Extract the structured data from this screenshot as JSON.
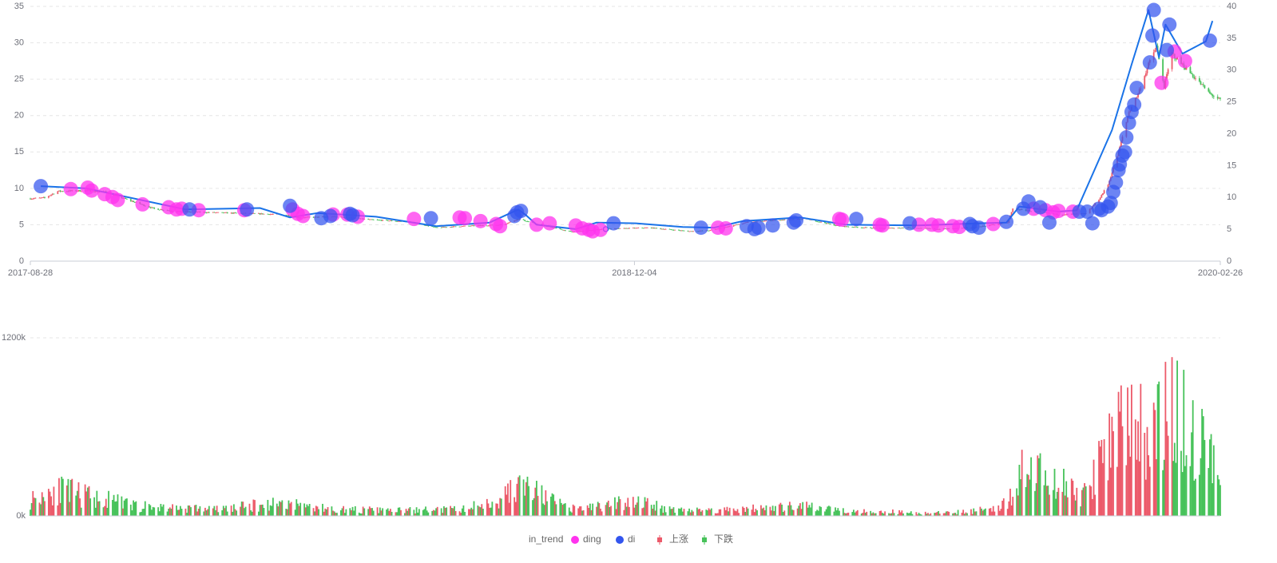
{
  "chart_data": {
    "type": "candlestick",
    "legend": {
      "placement": "bottom-center",
      "items": [
        {
          "name": "in_trend",
          "marker": "line",
          "color": "#1a73e8"
        },
        {
          "name": "ding",
          "marker": "circle",
          "color": "#ff33ee"
        },
        {
          "name": "di",
          "marker": "circle",
          "color": "#3355ee"
        },
        {
          "name": "上涨",
          "marker": "candle",
          "color": "#ec5a6a"
        },
        {
          "name": "下跌",
          "marker": "candle",
          "color": "#47c25a"
        }
      ]
    },
    "x_axis": {
      "labels": [
        "2017-08-28",
        "2018-12-04",
        "2020-02-26"
      ],
      "start_date": "2017-08-28",
      "end_date": "2020-02-26"
    },
    "price_left_axis": {
      "min": 0,
      "max": 35,
      "ticks": [
        0,
        5,
        10,
        15,
        20,
        25,
        30,
        35
      ]
    },
    "price_right_axis": {
      "min": 0,
      "max": 40,
      "ticks": [
        0,
        5,
        10,
        15,
        20,
        25,
        30,
        35,
        40
      ]
    },
    "volume_axis": {
      "min": 0,
      "max": 1500000,
      "tick_labels": [
        "0k",
        "1200k"
      ],
      "tick_values": [
        0,
        1200000
      ]
    },
    "colors": {
      "up": "#ec5a6a",
      "down": "#47c25a",
      "trend": "#1a73e8",
      "ding": "#ff33ee",
      "di": "#3355ee",
      "grid": "#e6e6e6",
      "axis": "#c8ccd4"
    },
    "price_anchors": [
      [
        "2017-08-28",
        8.6
      ],
      [
        "2017-09-08",
        8.7
      ],
      [
        "2017-09-18",
        9.6
      ],
      [
        "2017-10-10",
        9.7
      ],
      [
        "2017-10-25",
        9.5
      ],
      [
        "2017-11-08",
        8.6
      ],
      [
        "2017-12-01",
        7.2
      ],
      [
        "2017-12-20",
        6.8
      ],
      [
        "2018-01-10",
        6.7
      ],
      [
        "2018-02-20",
        6.5
      ],
      [
        "2018-03-10",
        6.4
      ],
      [
        "2018-03-22",
        6.0
      ],
      [
        "2018-04-20",
        6.1
      ],
      [
        "2018-05-15",
        5.7
      ],
      [
        "2018-06-15",
        5.4
      ],
      [
        "2018-07-05",
        4.6
      ],
      [
        "2018-07-25",
        4.8
      ],
      [
        "2018-08-25",
        5.0
      ],
      [
        "2018-09-06",
        5.8
      ],
      [
        "2018-09-18",
        5.2
      ],
      [
        "2018-10-17",
        4.0
      ],
      [
        "2018-11-10",
        4.4
      ],
      [
        "2018-12-15",
        4.6
      ],
      [
        "2019-01-15",
        4.1
      ],
      [
        "2019-01-30",
        4.2
      ],
      [
        "2019-02-28",
        5.3
      ],
      [
        "2019-03-20",
        5.6
      ],
      [
        "2019-04-15",
        5.8
      ],
      [
        "2019-05-10",
        4.8
      ],
      [
        "2019-06-10",
        4.5
      ],
      [
        "2019-07-01",
        4.6
      ],
      [
        "2019-07-25",
        4.4
      ],
      [
        "2019-08-20",
        4.6
      ],
      [
        "2019-09-16",
        5.3
      ],
      [
        "2019-09-20",
        7.2
      ],
      [
        "2019-10-08",
        6.8
      ],
      [
        "2019-10-25",
        6.4
      ],
      [
        "2019-11-15",
        6.5
      ],
      [
        "2019-11-25",
        8.5
      ],
      [
        "2019-12-02",
        10.5
      ],
      [
        "2019-12-10",
        15.0
      ],
      [
        "2019-12-18",
        20.5
      ],
      [
        "2019-12-25",
        23.0
      ],
      [
        "2020-01-02",
        27.0
      ],
      [
        "2020-01-08",
        29.5
      ],
      [
        "2020-01-14",
        24.0
      ],
      [
        "2020-01-20",
        28.5
      ],
      [
        "2020-02-05",
        25.5
      ],
      [
        "2020-02-18",
        23.0
      ],
      [
        "2020-02-26",
        22.1
      ]
    ],
    "volume_anchors": [
      [
        "2017-08-28",
        120000
      ],
      [
        "2017-09-15",
        200000
      ],
      [
        "2017-10-20",
        130000
      ],
      [
        "2017-11-20",
        70000
      ],
      [
        "2018-01-20",
        50000
      ],
      [
        "2018-03-10",
        100000
      ],
      [
        "2018-04-15",
        50000
      ],
      [
        "2018-06-05",
        40000
      ],
      [
        "2018-07-25",
        50000
      ],
      [
        "2018-08-20",
        110000
      ],
      [
        "2018-09-08",
        230000
      ],
      [
        "2018-10-15",
        50000
      ],
      [
        "2018-11-15",
        80000
      ],
      [
        "2018-12-05",
        120000
      ],
      [
        "2018-12-25",
        60000
      ],
      [
        "2019-01-25",
        40000
      ],
      [
        "2019-03-20",
        60000
      ],
      [
        "2019-04-10",
        70000
      ],
      [
        "2019-05-20",
        40000
      ],
      [
        "2019-07-20",
        20000
      ],
      [
        "2019-08-20",
        35000
      ],
      [
        "2019-09-15",
        90000
      ],
      [
        "2019-09-25",
        350000
      ],
      [
        "2019-10-15",
        280000
      ],
      [
        "2019-11-15",
        150000
      ],
      [
        "2019-11-28",
        450000
      ],
      [
        "2019-12-15",
        700000
      ],
      [
        "2020-01-05",
        650000
      ],
      [
        "2020-01-20",
        800000
      ],
      [
        "2020-02-10",
        550000
      ],
      [
        "2020-02-26",
        300000
      ]
    ],
    "trend_points": [
      [
        "2017-09-05",
        10.3
      ],
      [
        "2017-10-10",
        10.0
      ],
      [
        "2017-12-25",
        7.1
      ],
      [
        "2018-02-20",
        7.3
      ],
      [
        "2018-03-15",
        6.0
      ],
      [
        "2018-04-05",
        6.6
      ],
      [
        "2018-05-20",
        6.1
      ],
      [
        "2018-07-05",
        4.8
      ],
      [
        "2018-08-15",
        5.3
      ],
      [
        "2018-09-06",
        7.1
      ],
      [
        "2018-09-12",
        6.3
      ],
      [
        "2018-09-20",
        5.0
      ],
      [
        "2018-10-20",
        4.4
      ],
      [
        "2018-11-05",
        5.3
      ],
      [
        "2018-12-05",
        5.2
      ],
      [
        "2019-01-10",
        4.7
      ],
      [
        "2019-02-03",
        4.6
      ],
      [
        "2019-02-25",
        5.5
      ],
      [
        "2019-04-10",
        6.0
      ],
      [
        "2019-05-15",
        5.0
      ],
      [
        "2019-07-10",
        4.9
      ],
      [
        "2019-08-25",
        5.2
      ],
      [
        "2019-09-15",
        5.3
      ],
      [
        "2019-09-25",
        7.5
      ],
      [
        "2019-10-25",
        6.8
      ],
      [
        "2019-11-08",
        7.0
      ],
      [
        "2019-12-05",
        18.0
      ],
      [
        "2019-12-20",
        27.0
      ],
      [
        "2020-01-02",
        34.5
      ],
      [
        "2020-01-10",
        28.0
      ],
      [
        "2020-01-15",
        32.5
      ],
      [
        "2020-01-28",
        28.5
      ],
      [
        "2020-02-15",
        30.2
      ],
      [
        "2020-02-20",
        33.0
      ]
    ],
    "ding_points": [
      [
        "2017-09-28",
        9.9
      ],
      [
        "2017-10-11",
        10.1
      ],
      [
        "2017-10-14",
        9.7
      ],
      [
        "2017-10-24",
        9.2
      ],
      [
        "2017-10-30",
        8.8
      ],
      [
        "2017-11-03",
        8.4
      ],
      [
        "2017-11-22",
        7.8
      ],
      [
        "2017-12-12",
        7.4
      ],
      [
        "2017-12-18",
        7.1
      ],
      [
        "2017-12-22",
        7.2
      ],
      [
        "2018-01-04",
        7.0
      ],
      [
        "2018-02-08",
        7.0
      ],
      [
        "2018-03-17",
        7.1
      ],
      [
        "2018-03-21",
        6.5
      ],
      [
        "2018-03-25",
        6.2
      ],
      [
        "2018-04-17",
        6.4
      ],
      [
        "2018-04-28",
        6.4
      ],
      [
        "2018-05-06",
        6.1
      ],
      [
        "2018-06-18",
        5.8
      ],
      [
        "2018-07-23",
        6.0
      ],
      [
        "2018-07-27",
        5.9
      ],
      [
        "2018-08-08",
        5.5
      ],
      [
        "2018-08-20",
        5.1
      ],
      [
        "2018-08-23",
        4.8
      ],
      [
        "2018-09-20",
        5.0
      ],
      [
        "2018-09-30",
        5.2
      ],
      [
        "2018-10-20",
        4.9
      ],
      [
        "2018-10-25",
        4.5
      ],
      [
        "2018-10-30",
        4.3
      ],
      [
        "2018-11-02",
        4.1
      ],
      [
        "2018-11-08",
        4.3
      ],
      [
        "2019-02-06",
        4.6
      ],
      [
        "2019-02-12",
        4.5
      ],
      [
        "2019-05-10",
        5.8
      ],
      [
        "2019-05-12",
        5.7
      ],
      [
        "2019-06-10",
        5.0
      ],
      [
        "2019-06-12",
        4.9
      ],
      [
        "2019-07-10",
        5.0
      ],
      [
        "2019-07-20",
        5.0
      ],
      [
        "2019-07-25",
        4.9
      ],
      [
        "2019-08-05",
        4.8
      ],
      [
        "2019-08-10",
        4.7
      ],
      [
        "2019-09-05",
        5.1
      ],
      [
        "2019-10-06",
        7.2
      ],
      [
        "2019-10-15",
        7.0
      ],
      [
        "2019-10-21",
        6.7
      ],
      [
        "2019-10-25",
        6.9
      ],
      [
        "2019-11-05",
        6.8
      ],
      [
        "2020-01-12",
        24.5
      ],
      [
        "2020-01-22",
        28.8
      ],
      [
        "2020-01-30",
        27.5
      ]
    ],
    "di_points": [
      [
        "2017-09-05",
        10.3
      ],
      [
        "2017-12-28",
        7.1
      ],
      [
        "2018-02-10",
        7.1
      ],
      [
        "2018-03-15",
        7.6
      ],
      [
        "2018-04-08",
        5.9
      ],
      [
        "2018-04-15",
        6.2
      ],
      [
        "2018-04-30",
        6.5
      ],
      [
        "2018-05-02",
        6.3
      ],
      [
        "2018-07-01",
        5.9
      ],
      [
        "2018-09-03",
        6.2
      ],
      [
        "2018-09-05",
        6.7
      ],
      [
        "2018-09-08",
        6.9
      ],
      [
        "2018-11-18",
        5.2
      ],
      [
        "2019-01-24",
        4.6
      ],
      [
        "2019-02-28",
        4.8
      ],
      [
        "2019-03-06",
        4.4
      ],
      [
        "2019-03-09",
        4.6
      ],
      [
        "2019-03-20",
        4.9
      ],
      [
        "2019-04-05",
        5.3
      ],
      [
        "2019-04-07",
        5.6
      ],
      [
        "2019-05-23",
        5.8
      ],
      [
        "2019-07-03",
        5.2
      ],
      [
        "2019-08-18",
        5.1
      ],
      [
        "2019-09-15",
        5.4
      ],
      [
        "2019-08-20",
        4.8
      ],
      [
        "2019-08-25",
        4.6
      ],
      [
        "2019-10-18",
        5.3
      ],
      [
        "2019-11-10",
        6.8
      ],
      [
        "2019-11-20",
        5.2
      ],
      [
        "2019-11-27",
        7.0
      ],
      [
        "2019-12-02",
        7.5
      ],
      [
        "2019-09-28",
        7.2
      ],
      [
        "2019-10-02",
        8.2
      ],
      [
        "2019-10-11",
        7.4
      ],
      [
        "2019-11-16",
        6.8
      ],
      [
        "2019-11-25",
        7.2
      ],
      [
        "2019-12-04",
        8.0
      ],
      [
        "2019-12-06",
        9.5
      ],
      [
        "2019-12-08",
        10.8
      ],
      [
        "2019-12-10",
        12.5
      ],
      [
        "2019-12-11",
        13.3
      ],
      [
        "2019-12-13",
        14.5
      ],
      [
        "2019-12-15",
        15.0
      ],
      [
        "2019-12-16",
        17.0
      ],
      [
        "2019-12-18",
        19.0
      ],
      [
        "2019-12-20",
        20.5
      ],
      [
        "2019-12-22",
        21.5
      ],
      [
        "2019-12-24",
        23.8
      ],
      [
        "2020-01-03",
        27.3
      ],
      [
        "2020-01-05",
        31.0
      ],
      [
        "2020-01-06",
        34.5
      ],
      [
        "2020-01-16",
        29.0
      ],
      [
        "2020-01-18",
        32.5
      ],
      [
        "2020-02-18",
        30.3
      ]
    ]
  }
}
